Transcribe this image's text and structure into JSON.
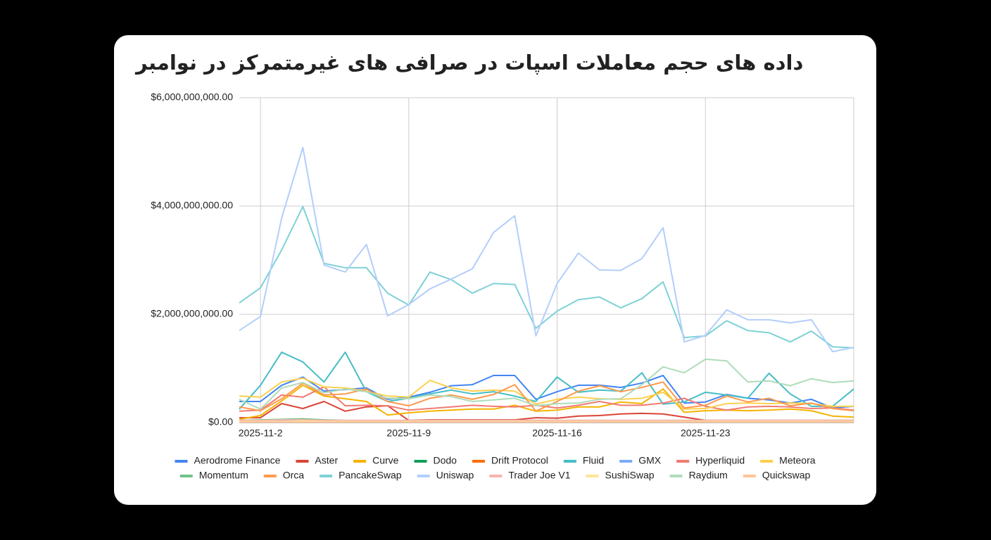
{
  "chart_data": {
    "type": "line",
    "title": "داده های حجم معاملات اسپات در صرافی های غیرمتمرکز در نوامبر",
    "categories": [
      null,
      "2025-11-2",
      null,
      null,
      null,
      null,
      null,
      null,
      "2025-11-9",
      null,
      null,
      null,
      null,
      null,
      null,
      "2025-11-16",
      null,
      null,
      null,
      null,
      null,
      null,
      "2025-11-23",
      null,
      null,
      null,
      null,
      null,
      null,
      null
    ],
    "ylim": [
      0,
      6000000000.0
    ],
    "yticks": [
      {
        "value": 0,
        "label": "$0.00"
      },
      {
        "value": 2000000000.0,
        "label": "$2,000,000,000.00"
      },
      {
        "value": 4000000000.0,
        "label": "$4,000,000,000.00"
      },
      {
        "value": 6000000000.0,
        "label": "$6,000,000,000.00"
      }
    ],
    "grid": true,
    "legend": "bottom",
    "series": [
      {
        "name": "Aerodrome Finance",
        "color": "#4285f4",
        "values": [
          390000000.0,
          390000000.0,
          690000000.0,
          840000000.0,
          580000000.0,
          610000000.0,
          640000000.0,
          430000000.0,
          470000000.0,
          560000000.0,
          680000000.0,
          700000000.0,
          870000000.0,
          870000000.0,
          430000000.0,
          570000000.0,
          690000000.0,
          690000000.0,
          650000000.0,
          730000000.0,
          870000000.0,
          360000000.0,
          380000000.0,
          520000000.0,
          450000000.0,
          420000000.0,
          360000000.0,
          430000000.0,
          270000000.0,
          300000000.0
        ]
      },
      {
        "name": "Aster",
        "color": "#db4437",
        "values": [
          90000000.0,
          90000000.0,
          350000000.0,
          260000000.0,
          390000000.0,
          210000000.0,
          290000000.0,
          310000000.0,
          40000000.0,
          50000000.0,
          50000000.0,
          50000000.0,
          50000000.0,
          50000000.0,
          90000000.0,
          80000000.0,
          120000000.0,
          130000000.0,
          160000000.0,
          170000000.0,
          160000000.0,
          100000000.0,
          40000000.0,
          40000000.0,
          40000000.0,
          40000000.0,
          40000000.0,
          40000000.0,
          40000000.0,
          40000000.0
        ]
      },
      {
        "name": "Curve",
        "color": "#f4b400",
        "values": [
          60000000.0,
          130000000.0,
          400000000.0,
          690000000.0,
          490000000.0,
          440000000.0,
          390000000.0,
          140000000.0,
          180000000.0,
          210000000.0,
          230000000.0,
          250000000.0,
          250000000.0,
          320000000.0,
          210000000.0,
          230000000.0,
          290000000.0,
          290000000.0,
          380000000.0,
          350000000.0,
          620000000.0,
          190000000.0,
          220000000.0,
          230000000.0,
          220000000.0,
          230000000.0,
          250000000.0,
          220000000.0,
          120000000.0,
          100000000.0
        ]
      },
      {
        "name": "Dodo",
        "color": "#0f9d58",
        "values": [
          20000000.0,
          20000000.0,
          30000000.0,
          30000000.0,
          20000000.0,
          20000000.0,
          20000000.0,
          20000000.0,
          20000000.0,
          20000000.0,
          20000000.0,
          20000000.0,
          20000000.0,
          20000000.0,
          20000000.0,
          20000000.0,
          20000000.0,
          20000000.0,
          20000000.0,
          20000000.0,
          20000000.0,
          20000000.0,
          20000000.0,
          20000000.0,
          20000000.0,
          20000000.0,
          20000000.0,
          20000000.0,
          20000000.0,
          20000000.0
        ]
      },
      {
        "name": "Drift Protocol",
        "color": "#ff6d01",
        "values": [
          30000000.0,
          30000000.0,
          40000000.0,
          50000000.0,
          30000000.0,
          30000000.0,
          30000000.0,
          30000000.0,
          30000000.0,
          30000000.0,
          30000000.0,
          30000000.0,
          30000000.0,
          30000000.0,
          30000000.0,
          30000000.0,
          30000000.0,
          30000000.0,
          30000000.0,
          30000000.0,
          30000000.0,
          30000000.0,
          30000000.0,
          30000000.0,
          30000000.0,
          30000000.0,
          30000000.0,
          30000000.0,
          30000000.0,
          30000000.0
        ]
      },
      {
        "name": "Fluid",
        "color": "#46bdc6",
        "values": [
          250000000.0,
          690000000.0,
          1300000000.0,
          1120000000.0,
          750000000.0,
          1300000000.0,
          570000000.0,
          390000000.0,
          450000000.0,
          530000000.0,
          600000000.0,
          530000000.0,
          570000000.0,
          490000000.0,
          390000000.0,
          840000000.0,
          560000000.0,
          600000000.0,
          580000000.0,
          920000000.0,
          340000000.0,
          380000000.0,
          560000000.0,
          510000000.0,
          450000000.0,
          910000000.0,
          530000000.0,
          300000000.0,
          300000000.0,
          620000000.0
        ]
      },
      {
        "name": "GMX",
        "color": "#7baaf7",
        "values": [
          30000000.0,
          30000000.0,
          30000000.0,
          40000000.0,
          30000000.0,
          30000000.0,
          30000000.0,
          30000000.0,
          30000000.0,
          30000000.0,
          30000000.0,
          30000000.0,
          30000000.0,
          30000000.0,
          30000000.0,
          30000000.0,
          30000000.0,
          30000000.0,
          30000000.0,
          30000000.0,
          30000000.0,
          30000000.0,
          30000000.0,
          30000000.0,
          30000000.0,
          30000000.0,
          30000000.0,
          30000000.0,
          30000000.0,
          30000000.0
        ]
      },
      {
        "name": "Hyperliquid",
        "color": "#f07b72",
        "values": [
          210000000.0,
          230000000.0,
          510000000.0,
          470000000.0,
          660000000.0,
          310000000.0,
          320000000.0,
          310000000.0,
          230000000.0,
          260000000.0,
          290000000.0,
          320000000.0,
          300000000.0,
          290000000.0,
          320000000.0,
          270000000.0,
          320000000.0,
          390000000.0,
          320000000.0,
          320000000.0,
          360000000.0,
          450000000.0,
          300000000.0,
          230000000.0,
          290000000.0,
          300000000.0,
          290000000.0,
          260000000.0,
          270000000.0,
          230000000.0
        ]
      },
      {
        "name": "Meteora",
        "color": "#fcd04f",
        "values": [
          490000000.0,
          470000000.0,
          750000000.0,
          820000000.0,
          660000000.0,
          640000000.0,
          580000000.0,
          490000000.0,
          470000000.0,
          780000000.0,
          640000000.0,
          580000000.0,
          600000000.0,
          580000000.0,
          340000000.0,
          430000000.0,
          470000000.0,
          440000000.0,
          430000000.0,
          450000000.0,
          560000000.0,
          250000000.0,
          260000000.0,
          350000000.0,
          360000000.0,
          350000000.0,
          360000000.0,
          350000000.0,
          300000000.0,
          300000000.0
        ]
      },
      {
        "name": "Momentum",
        "color": "#71c287",
        "values": [
          40000000.0,
          50000000.0,
          60000000.0,
          70000000.0,
          50000000.0,
          40000000.0,
          40000000.0,
          40000000.0,
          40000000.0,
          40000000.0,
          40000000.0,
          40000000.0,
          40000000.0,
          40000000.0,
          40000000.0,
          40000000.0,
          40000000.0,
          40000000.0,
          40000000.0,
          40000000.0,
          40000000.0,
          40000000.0,
          40000000.0,
          40000000.0,
          40000000.0,
          40000000.0,
          40000000.0,
          40000000.0,
          40000000.0,
          40000000.0
        ]
      },
      {
        "name": "Orca",
        "color": "#ff994d",
        "values": [
          290000000.0,
          220000000.0,
          440000000.0,
          730000000.0,
          510000000.0,
          530000000.0,
          620000000.0,
          390000000.0,
          310000000.0,
          450000000.0,
          510000000.0,
          430000000.0,
          520000000.0,
          700000000.0,
          210000000.0,
          390000000.0,
          580000000.0,
          680000000.0,
          570000000.0,
          650000000.0,
          750000000.0,
          270000000.0,
          320000000.0,
          490000000.0,
          380000000.0,
          450000000.0,
          310000000.0,
          360000000.0,
          260000000.0,
          220000000.0
        ]
      },
      {
        "name": "PancakeSwap",
        "color": "#7ed1d7",
        "values": [
          2210000000.0,
          2490000000.0,
          3190000000.0,
          3990000000.0,
          2940000000.0,
          2860000000.0,
          2860000000.0,
          2390000000.0,
          2170000000.0,
          2780000000.0,
          2640000000.0,
          2390000000.0,
          2570000000.0,
          2550000000.0,
          1740000000.0,
          2060000000.0,
          2270000000.0,
          2320000000.0,
          2120000000.0,
          2290000000.0,
          2600000000.0,
          1570000000.0,
          1600000000.0,
          1880000000.0,
          1700000000.0,
          1660000000.0,
          1490000000.0,
          1690000000.0,
          1400000000.0,
          1380000000.0
        ]
      },
      {
        "name": "Uniswap",
        "color": "#b3cefb",
        "values": [
          1700000000.0,
          1960000000.0,
          3780000000.0,
          5080000000.0,
          2910000000.0,
          2780000000.0,
          3290000000.0,
          1970000000.0,
          2180000000.0,
          2470000000.0,
          2650000000.0,
          2840000000.0,
          3510000000.0,
          3820000000.0,
          1600000000.0,
          2570000000.0,
          3130000000.0,
          2820000000.0,
          2810000000.0,
          3030000000.0,
          3600000000.0,
          1490000000.0,
          1610000000.0,
          2080000000.0,
          1900000000.0,
          1900000000.0,
          1840000000.0,
          1900000000.0,
          1310000000.0,
          1390000000.0
        ]
      },
      {
        "name": "Trader Joe V1",
        "color": "#f7b4ae",
        "values": [
          40000000.0,
          40000000.0,
          50000000.0,
          50000000.0,
          40000000.0,
          40000000.0,
          40000000.0,
          40000000.0,
          40000000.0,
          40000000.0,
          40000000.0,
          40000000.0,
          40000000.0,
          40000000.0,
          40000000.0,
          40000000.0,
          40000000.0,
          40000000.0,
          40000000.0,
          40000000.0,
          40000000.0,
          40000000.0,
          40000000.0,
          40000000.0,
          40000000.0,
          40000000.0,
          40000000.0,
          40000000.0,
          40000000.0,
          40000000.0
        ]
      },
      {
        "name": "SushiSwap",
        "color": "#fde49b",
        "values": [
          20000000.0,
          20000000.0,
          20000000.0,
          30000000.0,
          20000000.0,
          20000000.0,
          20000000.0,
          20000000.0,
          20000000.0,
          20000000.0,
          20000000.0,
          20000000.0,
          20000000.0,
          20000000.0,
          20000000.0,
          20000000.0,
          20000000.0,
          20000000.0,
          20000000.0,
          20000000.0,
          20000000.0,
          20000000.0,
          20000000.0,
          20000000.0,
          20000000.0,
          20000000.0,
          20000000.0,
          20000000.0,
          20000000.0,
          20000000.0
        ]
      },
      {
        "name": "Raydium",
        "color": "#aedcba",
        "values": [
          430000000.0,
          250000000.0,
          640000000.0,
          740000000.0,
          550000000.0,
          620000000.0,
          570000000.0,
          450000000.0,
          440000000.0,
          510000000.0,
          480000000.0,
          390000000.0,
          420000000.0,
          450000000.0,
          310000000.0,
          350000000.0,
          360000000.0,
          430000000.0,
          440000000.0,
          700000000.0,
          1030000000.0,
          920000000.0,
          1170000000.0,
          1140000000.0,
          750000000.0,
          770000000.0,
          680000000.0,
          810000000.0,
          740000000.0,
          770000000.0
        ]
      },
      {
        "name": "Quickswap",
        "color": "#ffc599",
        "values": [
          10000000.0,
          10000000.0,
          10000000.0,
          10000000.0,
          10000000.0,
          10000000.0,
          10000000.0,
          10000000.0,
          10000000.0,
          10000000.0,
          10000000.0,
          10000000.0,
          10000000.0,
          10000000.0,
          10000000.0,
          10000000.0,
          10000000.0,
          10000000.0,
          10000000.0,
          10000000.0,
          10000000.0,
          10000000.0,
          10000000.0,
          10000000.0,
          10000000.0,
          10000000.0,
          10000000.0,
          10000000.0,
          10000000.0,
          10000000.0
        ]
      }
    ]
  }
}
